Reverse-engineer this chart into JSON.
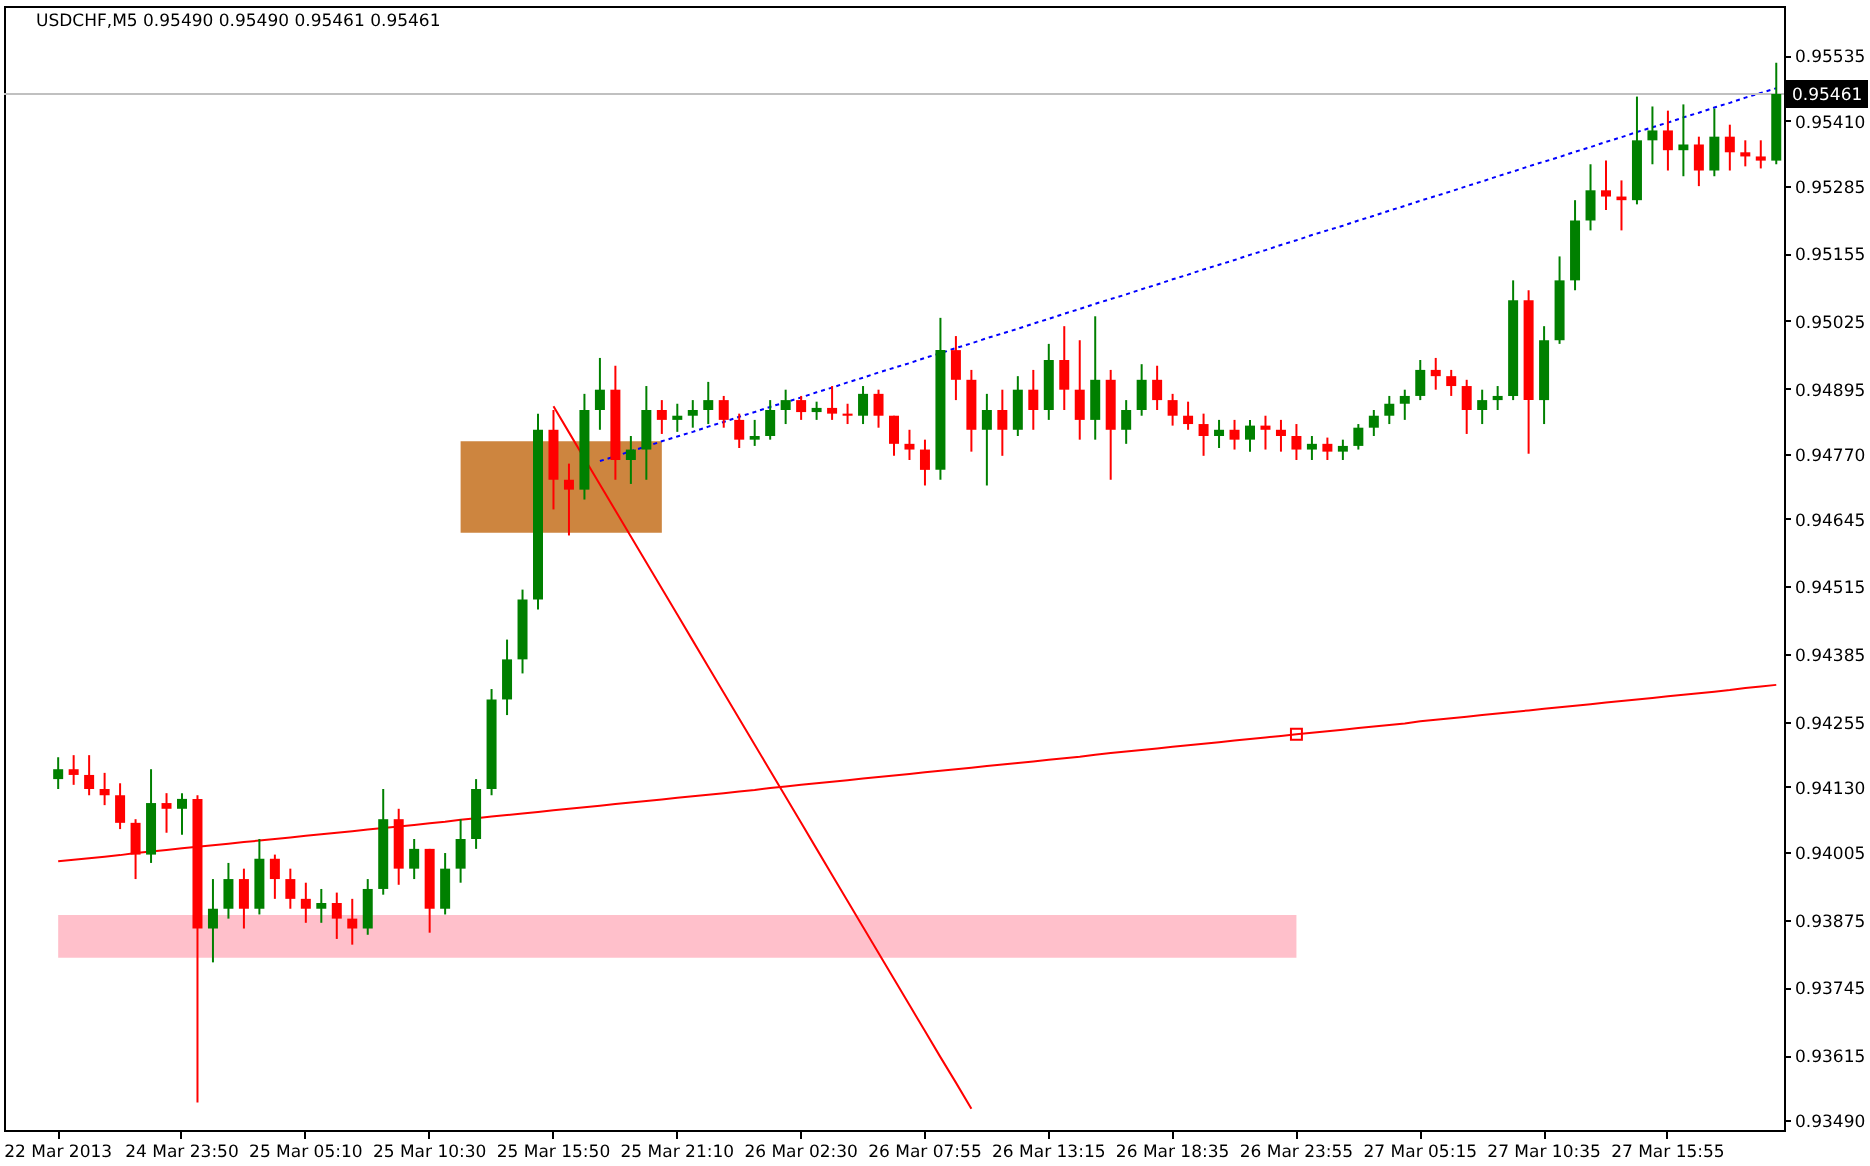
{
  "chart_data": {
    "type": "candlestick",
    "title": "USDCHF,M5 0.95490 0.95490 0.95461 0.95461",
    "categories": [
      "22 Mar 2013",
      null,
      null,
      null,
      null,
      null,
      null,
      null,
      "24 Mar 23:50",
      null,
      null,
      null,
      null,
      null,
      null,
      null,
      "25 Mar 05:10",
      null,
      null,
      null,
      null,
      null,
      null,
      null,
      "25 Mar 10:30",
      null,
      null,
      null,
      null,
      null,
      null,
      null,
      "25 Mar 15:50",
      null,
      null,
      null,
      null,
      null,
      null,
      null,
      "25 Mar 21:10",
      null,
      null,
      null,
      null,
      null,
      null,
      null,
      "26 Mar 02:30",
      null,
      null,
      null,
      null,
      null,
      null,
      null,
      "26 Mar 07:55",
      null,
      null,
      null,
      null,
      null,
      null,
      null,
      "26 Mar 13:15",
      null,
      null,
      null,
      null,
      null,
      null,
      null,
      "26 Mar 18:35",
      null,
      null,
      null,
      null,
      null,
      null,
      null,
      "26 Mar 23:55",
      null,
      null,
      null,
      null,
      null,
      null,
      null,
      "27 Mar 05:15",
      null,
      null,
      null,
      null,
      null,
      null,
      null,
      "27 Mar 10:35",
      null,
      null,
      null,
      null,
      null,
      null,
      null,
      "27 Mar 15:55",
      null,
      null,
      null,
      null,
      null,
      null,
      null
    ],
    "ohlc": [
      [
        0.94145,
        0.94187,
        0.94126,
        0.94164
      ],
      [
        0.94164,
        0.94191,
        0.94134,
        0.94153
      ],
      [
        0.94153,
        0.94191,
        0.94114,
        0.94126
      ],
      [
        0.94126,
        0.94157,
        0.94095,
        0.94114
      ],
      [
        0.94114,
        0.94137,
        0.94049,
        0.94061
      ],
      [
        0.94061,
        0.94068,
        0.93953,
        0.94
      ],
      [
        0.94,
        0.94164,
        0.93984,
        0.94099
      ],
      [
        0.94099,
        0.94118,
        0.94042,
        0.94088
      ],
      [
        0.94088,
        0.94118,
        0.94038,
        0.94107
      ],
      [
        0.94107,
        0.94114,
        0.93524,
        0.93858
      ],
      [
        0.93858,
        0.93953,
        0.93793,
        0.93896
      ],
      [
        0.93896,
        0.93984,
        0.93877,
        0.93953
      ],
      [
        0.93953,
        0.93973,
        0.93858,
        0.93896
      ],
      [
        0.93896,
        0.9403,
        0.93885,
        0.93992
      ],
      [
        0.93992,
        0.94,
        0.93915,
        0.93953
      ],
      [
        0.93953,
        0.93973,
        0.93896,
        0.93915
      ],
      [
        0.93915,
        0.93946,
        0.93869,
        0.93896
      ],
      [
        0.93896,
        0.93934,
        0.93869,
        0.93907
      ],
      [
        0.93907,
        0.93927,
        0.93838,
        0.93877
      ],
      [
        0.93877,
        0.93915,
        0.93827,
        0.93858
      ],
      [
        0.93858,
        0.93953,
        0.93846,
        0.93934
      ],
      [
        0.93934,
        0.94126,
        0.93923,
        0.94068
      ],
      [
        0.94068,
        0.94088,
        0.93942,
        0.93973
      ],
      [
        0.93973,
        0.9403,
        0.93953,
        0.94011
      ],
      [
        0.94011,
        0.94011,
        0.9385,
        0.93896
      ],
      [
        0.93896,
        0.94003,
        0.93885,
        0.93973
      ],
      [
        0.93973,
        0.94068,
        0.93946,
        0.9403
      ],
      [
        0.9403,
        0.94145,
        0.94011,
        0.94126
      ],
      [
        0.94126,
        0.94318,
        0.94114,
        0.94298
      ],
      [
        0.94298,
        0.94413,
        0.94268,
        0.94375
      ],
      [
        0.94375,
        0.94509,
        0.94348,
        0.9449
      ],
      [
        0.9449,
        0.94847,
        0.94471,
        0.94816
      ],
      [
        0.94816,
        0.94854,
        0.94663,
        0.9472
      ],
      [
        0.9472,
        0.94751,
        0.94613,
        0.94701
      ],
      [
        0.94701,
        0.94885,
        0.94682,
        0.94854
      ],
      [
        0.94854,
        0.94954,
        0.94816,
        0.94893
      ],
      [
        0.94893,
        0.94939,
        0.9472,
        0.94758
      ],
      [
        0.94758,
        0.94804,
        0.94712,
        0.94778
      ],
      [
        0.94778,
        0.949,
        0.9472,
        0.94854
      ],
      [
        0.94854,
        0.94873,
        0.94808,
        0.94835
      ],
      [
        0.94835,
        0.94866,
        0.94812,
        0.94843
      ],
      [
        0.94843,
        0.94873,
        0.9482,
        0.94854
      ],
      [
        0.94854,
        0.94908,
        0.94827,
        0.94873
      ],
      [
        0.94873,
        0.94881,
        0.9482,
        0.94835
      ],
      [
        0.94835,
        0.94847,
        0.94781,
        0.94797
      ],
      [
        0.94797,
        0.94835,
        0.94785,
        0.94804
      ],
      [
        0.94804,
        0.94873,
        0.94797,
        0.94854
      ],
      [
        0.94854,
        0.94893,
        0.94827,
        0.94873
      ],
      [
        0.94873,
        0.94881,
        0.94835,
        0.9485
      ],
      [
        0.9485,
        0.9487,
        0.94835,
        0.94858
      ],
      [
        0.94858,
        0.949,
        0.94835,
        0.94847
      ],
      [
        0.94847,
        0.94866,
        0.94827,
        0.94843
      ],
      [
        0.94843,
        0.949,
        0.94827,
        0.94885
      ],
      [
        0.94885,
        0.94893,
        0.9482,
        0.94843
      ],
      [
        0.94843,
        0.94843,
        0.94766,
        0.94789
      ],
      [
        0.94789,
        0.94816,
        0.94758,
        0.94778
      ],
      [
        0.94778,
        0.94797,
        0.94709,
        0.94739
      ],
      [
        0.94739,
        0.95031,
        0.9472,
        0.94969
      ],
      [
        0.94969,
        0.94996,
        0.94873,
        0.94912
      ],
      [
        0.94912,
        0.94931,
        0.94774,
        0.94816
      ],
      [
        0.94816,
        0.94885,
        0.94709,
        0.94854
      ],
      [
        0.94854,
        0.94893,
        0.94766,
        0.94816
      ],
      [
        0.94816,
        0.94919,
        0.94804,
        0.94893
      ],
      [
        0.94893,
        0.94931,
        0.94816,
        0.94854
      ],
      [
        0.94854,
        0.94981,
        0.94835,
        0.9495
      ],
      [
        0.9495,
        0.95015,
        0.94854,
        0.94893
      ],
      [
        0.94893,
        0.94988,
        0.94797,
        0.94835
      ],
      [
        0.94835,
        0.95034,
        0.94797,
        0.94912
      ],
      [
        0.94912,
        0.94931,
        0.9472,
        0.94816
      ],
      [
        0.94816,
        0.94873,
        0.94789,
        0.94854
      ],
      [
        0.94854,
        0.94942,
        0.94843,
        0.94912
      ],
      [
        0.94912,
        0.94939,
        0.94854,
        0.94873
      ],
      [
        0.94873,
        0.94885,
        0.94824,
        0.94843
      ],
      [
        0.94843,
        0.9487,
        0.94816,
        0.94827
      ],
      [
        0.94827,
        0.94847,
        0.94766,
        0.94804
      ],
      [
        0.94804,
        0.94835,
        0.94781,
        0.94816
      ],
      [
        0.94816,
        0.94835,
        0.94778,
        0.94797
      ],
      [
        0.94797,
        0.94835,
        0.94774,
        0.94824
      ],
      [
        0.94824,
        0.94843,
        0.94778,
        0.94816
      ],
      [
        0.94816,
        0.94835,
        0.94774,
        0.94804
      ],
      [
        0.94804,
        0.94827,
        0.94758,
        0.94778
      ],
      [
        0.94778,
        0.94804,
        0.94758,
        0.94789
      ],
      [
        0.94789,
        0.94801,
        0.94758,
        0.94774
      ],
      [
        0.94774,
        0.94797,
        0.94758,
        0.94785
      ],
      [
        0.94785,
        0.94827,
        0.94778,
        0.9482
      ],
      [
        0.9482,
        0.94854,
        0.94804,
        0.94843
      ],
      [
        0.94843,
        0.94881,
        0.94827,
        0.94866
      ],
      [
        0.94866,
        0.94893,
        0.94835,
        0.94881
      ],
      [
        0.94881,
        0.9495,
        0.94873,
        0.94931
      ],
      [
        0.94931,
        0.94954,
        0.94893,
        0.94919
      ],
      [
        0.94919,
        0.94931,
        0.94881,
        0.949
      ],
      [
        0.949,
        0.94912,
        0.94808,
        0.94854
      ],
      [
        0.94854,
        0.94893,
        0.94827,
        0.94873
      ],
      [
        0.94873,
        0.949,
        0.94854,
        0.94881
      ],
      [
        0.94881,
        0.95103,
        0.94873,
        0.95065
      ],
      [
        0.95065,
        0.95084,
        0.9477,
        0.94873
      ],
      [
        0.94873,
        0.95015,
        0.94827,
        0.94988
      ],
      [
        0.94988,
        0.95149,
        0.94981,
        0.95103
      ],
      [
        0.95103,
        0.95257,
        0.95084,
        0.95218
      ],
      [
        0.95218,
        0.95326,
        0.95199,
        0.95276
      ],
      [
        0.95276,
        0.95333,
        0.95238,
        0.95264
      ],
      [
        0.95264,
        0.95295,
        0.95199,
        0.95257
      ],
      [
        0.95257,
        0.95456,
        0.95249,
        0.95372
      ],
      [
        0.95372,
        0.95437,
        0.95326,
        0.95391
      ],
      [
        0.95391,
        0.95429,
        0.95314,
        0.95353
      ],
      [
        0.95353,
        0.95441,
        0.95303,
        0.95364
      ],
      [
        0.95364,
        0.95379,
        0.95284,
        0.95314
      ],
      [
        0.95314,
        0.95433,
        0.95303,
        0.95379
      ],
      [
        0.95379,
        0.95402,
        0.95314,
        0.95349
      ],
      [
        0.95349,
        0.95372,
        0.95322,
        0.95341
      ],
      [
        0.95341,
        0.95372,
        0.95318,
        0.95333
      ],
      [
        0.95333,
        0.95521,
        0.95326,
        0.95461
      ]
    ],
    "colors": [
      "#008000",
      "#ff0000",
      "#ff0000",
      "#ff0000",
      "#ff0000",
      "#ff0000",
      "#008000",
      "#ff0000",
      "#008000",
      "#ff0000",
      "#008000",
      "#008000",
      "#ff0000",
      "#008000",
      "#ff0000",
      "#ff0000",
      "#ff0000",
      "#008000",
      "#ff0000",
      "#ff0000",
      "#008000",
      "#008000",
      "#ff0000",
      "#008000",
      "#ff0000",
      "#008000",
      "#008000",
      "#008000",
      "#008000",
      "#008000",
      "#008000",
      "#008000",
      "#ff0000",
      "#ff0000",
      "#008000",
      "#008000",
      "#ff0000",
      "#008000",
      "#008000",
      "#ff0000",
      "#008000",
      "#008000",
      "#008000",
      "#ff0000",
      "#ff0000",
      "#008000",
      "#008000",
      "#008000",
      "#ff0000",
      "#008000",
      "#ff0000",
      "#ff0000",
      "#008000",
      "#ff0000",
      "#ff0000",
      "#ff0000",
      "#ff0000",
      "#008000",
      "#ff0000",
      "#ff0000",
      "#008000",
      "#ff0000",
      "#008000",
      "#ff0000",
      "#008000",
      "#ff0000",
      "#ff0000",
      "#008000",
      "#ff0000",
      "#008000",
      "#008000",
      "#ff0000",
      "#ff0000",
      "#ff0000",
      "#ff0000",
      "#008000",
      "#ff0000",
      "#008000",
      "#ff0000",
      "#ff0000",
      "#ff0000",
      "#008000",
      "#ff0000",
      "#008000",
      "#008000",
      "#008000",
      "#008000",
      "#008000",
      "#008000",
      "#ff0000",
      "#ff0000",
      "#ff0000",
      "#008000",
      "#008000",
      "#008000",
      "#ff0000",
      "#008000",
      "#008000",
      "#008000",
      "#008000",
      "#ff0000",
      "#ff0000",
      "#008000",
      "#008000",
      "#ff0000",
      "#008000",
      "#ff0000",
      "#008000",
      "#ff0000",
      "#ff0000",
      "#ff0000",
      "#008000"
    ],
    "ylim": [
      0.93471,
      0.9563
    ],
    "yticks": [
      0.95535,
      {
        "value": 0.9541,
        "label": "0.95410"
      },
      0.95285,
      0.95155,
      0.95025,
      0.94895,
      {
        "value": 0.9477,
        "label": "0.94770"
      },
      0.94645,
      0.94515,
      0.94385,
      0.94255,
      {
        "value": 0.9413,
        "label": "0.94130"
      },
      0.94005,
      0.93875,
      0.93745,
      0.93615,
      {
        "value": 0.9349,
        "label": "0.93490"
      }
    ],
    "series": [
      {
        "type": "line",
        "color": "#cd853f",
        "values": [
          null,
          null,
          null,
          null,
          null,
          null,
          null,
          null,
          null,
          null,
          null,
          null,
          null,
          null,
          null,
          null,
          null,
          null,
          null,
          null,
          null,
          null,
          null,
          null,
          null,
          null,
          null,
          null,
          null,
          null,
          null,
          null,
          null,
          null,
          null,
          null,
          null,
          null,
          null,
          null,
          null,
          null,
          null,
          null,
          null,
          null,
          null,
          null,
          null,
          null,
          null,
          null,
          null,
          null,
          null,
          null,
          null,
          null,
          null,
          null,
          null,
          null,
          null,
          null,
          null,
          null,
          null,
          null,
          null,
          null,
          null,
          null,
          null,
          null,
          null,
          null,
          null,
          null,
          null,
          null,
          null,
          null,
          null,
          null,
          null,
          null,
          null,
          null,
          null,
          null,
          null,
          null,
          null,
          null,
          null,
          null,
          null,
          null,
          null,
          null,
          null,
          null,
          null,
          null,
          null,
          null,
          null,
          null,
          null,
          null,
          null,
          null
        ],
        "lower": [
          null,
          null,
          null,
          null,
          null,
          null,
          null,
          null,
          null,
          null,
          null,
          null,
          null,
          null,
          null,
          null,
          null,
          null,
          null,
          null,
          null,
          null,
          null,
          null,
          null,
          null,
          0.94618,
          0.94618,
          0.94618,
          0.94618,
          0.94618,
          0.94618,
          0.94618,
          0.94618,
          0.94618,
          0.94618,
          0.94618,
          0.94618,
          0.94618,
          0.94618,
          null,
          null,
          null,
          null,
          null,
          null,
          null,
          null,
          null,
          null,
          null,
          null,
          null,
          null,
          null,
          null,
          null,
          null,
          null,
          null,
          null,
          null,
          null,
          null,
          null,
          null,
          null,
          null,
          null,
          null,
          null,
          null,
          null,
          null,
          null,
          null,
          null,
          null,
          null,
          null,
          null,
          null,
          null,
          null,
          null,
          null,
          null,
          null,
          null,
          null,
          null,
          null,
          null,
          null,
          null,
          null,
          null,
          null,
          null,
          null,
          null,
          null,
          null,
          null,
          null,
          null,
          null,
          null,
          null,
          null,
          null,
          null
        ],
        "upper": [
          null,
          null,
          null,
          null,
          null,
          null,
          null,
          null,
          null,
          null,
          null,
          null,
          null,
          null,
          null,
          null,
          null,
          null,
          null,
          null,
          null,
          null,
          null,
          null,
          null,
          null,
          0.94794,
          0.94794,
          0.94794,
          0.94794,
          0.94794,
          0.94794,
          0.94794,
          0.94794,
          0.94794,
          0.94794,
          0.94794,
          0.94794,
          0.94794,
          0.94794,
          null,
          null,
          null,
          null,
          null,
          null,
          null,
          null,
          null,
          null,
          null,
          null,
          null,
          null,
          null,
          null,
          null,
          null,
          null,
          null,
          null,
          null,
          null,
          null,
          null,
          null,
          null,
          null,
          null,
          null,
          null,
          null,
          null,
          null,
          null,
          null,
          null,
          null,
          null,
          null,
          null,
          null,
          null,
          null,
          null,
          null,
          null,
          null,
          null,
          null,
          null,
          null,
          null,
          null,
          null,
          null,
          null,
          null,
          null,
          null,
          null,
          null,
          null,
          null,
          null,
          null,
          null,
          null,
          null,
          null,
          null,
          null
        ]
      },
      {
        "type": "line",
        "color": "#ffc0cb",
        "values": [
          null,
          null,
          null,
          null,
          null,
          null,
          null,
          null,
          null,
          null,
          null,
          null,
          null,
          null,
          null,
          null,
          null,
          null,
          null,
          null,
          null,
          null,
          null,
          null,
          null,
          null,
          null,
          null,
          null,
          null,
          null,
          null,
          null,
          null,
          null,
          null,
          null,
          null,
          null,
          null,
          null,
          null,
          null,
          null,
          null,
          null,
          null,
          null,
          null,
          null,
          null,
          null,
          null,
          null,
          null,
          null,
          null,
          null,
          null,
          null,
          null,
          null,
          null,
          null,
          null,
          null,
          null,
          null,
          null,
          null,
          null,
          null,
          null,
          null,
          null,
          null,
          null,
          null,
          null,
          null,
          null,
          null,
          null,
          null,
          null,
          null,
          null,
          null,
          null,
          null,
          null,
          null,
          null,
          null,
          null,
          null,
          null,
          null,
          null,
          null,
          null,
          null,
          null,
          null,
          null,
          null,
          null,
          null,
          null,
          null,
          null,
          null
        ],
        "lower": [
          0.93802,
          0.93802,
          0.93802,
          0.93802,
          0.93802,
          0.93802,
          0.93802,
          0.93802,
          0.93802,
          0.93802,
          0.93802,
          0.93802,
          0.93802,
          0.93802,
          0.93802,
          0.93802,
          0.93802,
          0.93802,
          0.93802,
          0.93802,
          0.93802,
          0.93802,
          0.93802,
          0.93802,
          0.93802,
          0.93802,
          0.93802,
          0.93802,
          0.93802,
          0.93802,
          0.93802,
          0.93802,
          0.93802,
          0.93802,
          0.93802,
          0.93802,
          0.93802,
          0.93802,
          0.93802,
          0.93802,
          0.93802,
          0.93802,
          0.93802,
          0.93802,
          0.93802,
          0.93802,
          0.93802,
          0.93802,
          0.93802,
          0.93802,
          0.93802,
          0.93802,
          0.93802,
          0.93802,
          0.93802,
          0.93802,
          0.93802,
          0.93802,
          0.93802,
          0.93802,
          0.93802,
          0.93802,
          0.93802,
          0.93802,
          0.93802,
          0.93802,
          0.93802,
          0.93802,
          0.93802,
          0.93802,
          0.93802,
          0.93802,
          0.93802,
          0.93802,
          0.93802,
          0.93802,
          0.93802,
          0.93802,
          0.93802,
          0.93802,
          0.93802,
          null,
          null,
          null,
          null,
          null,
          null,
          null,
          null,
          null,
          null,
          null,
          null,
          null,
          null,
          null,
          null,
          null,
          null,
          null,
          null,
          null,
          null,
          null,
          null,
          null,
          null,
          null,
          null,
          null,
          null,
          null
        ],
        "upper": [
          0.93884,
          0.93884,
          0.93884,
          0.93884,
          0.93884,
          0.93884,
          0.93884,
          0.93884,
          0.93884,
          0.93884,
          0.93884,
          0.93884,
          0.93884,
          0.93884,
          0.93884,
          0.93884,
          0.93884,
          0.93884,
          0.93884,
          0.93884,
          0.93884,
          0.93884,
          0.93884,
          0.93884,
          0.93884,
          0.93884,
          0.93884,
          0.93884,
          0.93884,
          0.93884,
          0.93884,
          0.93884,
          0.93884,
          0.93884,
          0.93884,
          0.93884,
          0.93884,
          0.93884,
          0.93884,
          0.93884,
          0.93884,
          0.93884,
          0.93884,
          0.93884,
          0.93884,
          0.93884,
          0.93884,
          0.93884,
          0.93884,
          0.93884,
          0.93884,
          0.93884,
          0.93884,
          0.93884,
          0.93884,
          0.93884,
          0.93884,
          0.93884,
          0.93884,
          0.93884,
          0.93884,
          0.93884,
          0.93884,
          0.93884,
          0.93884,
          0.93884,
          0.93884,
          0.93884,
          0.93884,
          0.93884,
          0.93884,
          0.93884,
          0.93884,
          0.93884,
          0.93884,
          0.93884,
          0.93884,
          0.93884,
          0.93884,
          0.93884,
          0.93884,
          null,
          null,
          null,
          null,
          null,
          null,
          null,
          null,
          null,
          null,
          null,
          null,
          null,
          null,
          null,
          null,
          null,
          null,
          null,
          null,
          null,
          null,
          null,
          null,
          null,
          null,
          null,
          null,
          null,
          null,
          null
        ]
      },
      {
        "type": "line",
        "color": "#ff0000",
        "values": [
          0.93987,
          0.9399,
          0.93993,
          0.93996,
          0.93999,
          0.94003,
          0.94006,
          0.94009,
          0.94012,
          0.94015,
          0.94018,
          0.94021,
          0.94024,
          0.94027,
          0.9403,
          0.94033,
          0.94036,
          0.94039,
          0.94042,
          0.94045,
          0.94048,
          0.94051,
          0.94054,
          0.94057,
          0.9406,
          0.94063,
          0.94067,
          0.9407,
          0.94073,
          0.94076,
          0.94079,
          0.94082,
          0.94085,
          0.94088,
          0.94091,
          0.94094,
          0.94097,
          0.941,
          0.94103,
          0.94106,
          0.94109,
          0.94112,
          0.94115,
          0.94118,
          0.94121,
          0.94124,
          0.94128,
          0.94131,
          0.94134,
          0.94137,
          0.9414,
          0.94143,
          0.94146,
          0.94149,
          0.94152,
          0.94155,
          0.94158,
          0.94161,
          0.94164,
          0.94167,
          0.9417,
          0.94173,
          0.94176,
          0.94179,
          0.94182,
          0.94185,
          0.94188,
          0.94192,
          0.94195,
          0.94198,
          0.94201,
          0.94204,
          0.94207,
          0.9421,
          0.94213,
          0.94216,
          0.94219,
          0.94222,
          0.94225,
          0.94228,
          0.94231,
          0.94234,
          0.94237,
          0.9424,
          0.94243,
          0.94246,
          0.94249,
          0.94252,
          0.94256,
          0.94259,
          0.94262,
          0.94265,
          0.94268,
          0.94271,
          0.94274,
          0.94277,
          0.9428,
          0.94283,
          0.94286,
          0.94289,
          0.94292,
          0.94295,
          0.94298,
          0.94301,
          0.94304,
          0.94307,
          0.9431,
          0.94313,
          0.94316,
          0.9432,
          0.94323,
          0.94326
        ]
      },
      {
        "type": "scatter",
        "color": "#ff0000",
        "marker": "square",
        "values": [
          null,
          null,
          null,
          null,
          null,
          null,
          null,
          null,
          null,
          null,
          null,
          null,
          null,
          null,
          null,
          null,
          null,
          null,
          null,
          null,
          null,
          null,
          null,
          null,
          null,
          null,
          null,
          null,
          null,
          null,
          null,
          null,
          null,
          null,
          null,
          null,
          null,
          null,
          null,
          null,
          null,
          null,
          null,
          null,
          null,
          null,
          null,
          null,
          null,
          null,
          null,
          null,
          null,
          null,
          null,
          null,
          null,
          null,
          null,
          null,
          null,
          null,
          null,
          null,
          null,
          null,
          null,
          null,
          null,
          null,
          null,
          null,
          null,
          null,
          null,
          null,
          null,
          null,
          null,
          null,
          0.94231,
          null,
          null,
          null,
          null,
          null,
          null,
          null,
          null,
          null,
          null,
          null,
          null,
          null,
          null,
          null,
          null,
          null,
          null,
          null,
          null,
          null,
          null,
          null,
          null,
          null,
          null,
          null,
          null,
          null,
          null,
          null
        ]
      },
      {
        "type": "line",
        "color": "#ff0000",
        "values": [
          null,
          null,
          null,
          null,
          null,
          null,
          null,
          null,
          null,
          null,
          null,
          null,
          null,
          null,
          null,
          null,
          null,
          null,
          null,
          null,
          null,
          null,
          null,
          null,
          null,
          null,
          null,
          null,
          null,
          null,
          null,
          null,
          0.94861,
          0.94811,
          0.94761,
          0.94711,
          0.94661,
          0.94611,
          0.94561,
          0.94511,
          0.94461,
          0.94411,
          0.94361,
          0.94311,
          0.94261,
          0.94211,
          0.94161,
          0.94111,
          0.94061,
          0.94011,
          0.93961,
          0.93911,
          0.93861,
          0.93811,
          0.93761,
          0.93711,
          0.93661,
          0.93611,
          0.93562,
          0.93512,
          null,
          null,
          null,
          null,
          null,
          null,
          null,
          null,
          null,
          null,
          null,
          null,
          null,
          null,
          null,
          null,
          null,
          null,
          null,
          null,
          null,
          null,
          null,
          null,
          null,
          null,
          null,
          null,
          null,
          null,
          null,
          null,
          null,
          null,
          null,
          null,
          null,
          null,
          null,
          null,
          null,
          null,
          null,
          null,
          null,
          null,
          null,
          null,
          null,
          null,
          null,
          null
        ]
      },
      {
        "type": "line",
        "color": "#0000ff",
        "line_style": "dotted",
        "values": [
          null,
          null,
          null,
          null,
          null,
          null,
          null,
          null,
          null,
          null,
          null,
          null,
          null,
          null,
          null,
          null,
          null,
          null,
          null,
          null,
          null,
          null,
          null,
          null,
          null,
          null,
          null,
          null,
          null,
          null,
          null,
          null,
          null,
          null,
          null,
          0.94756,
          0.94765,
          0.94775,
          0.94784,
          0.94794,
          0.94803,
          0.94812,
          0.94822,
          0.94831,
          0.94841,
          0.9485,
          0.9486,
          0.94869,
          0.94878,
          0.94888,
          0.94897,
          0.94907,
          0.94916,
          0.94926,
          0.94935,
          0.94944,
          0.94954,
          0.94963,
          0.94973,
          0.94982,
          0.94992,
          0.95001,
          0.9501,
          0.9502,
          0.95029,
          0.95039,
          0.95048,
          0.95058,
          0.95067,
          0.95076,
          0.95086,
          0.95095,
          0.95105,
          0.95114,
          0.95124,
          0.95133,
          0.95142,
          0.95152,
          0.95161,
          0.95171,
          0.9518,
          0.9519,
          0.95199,
          0.95208,
          0.95218,
          0.95227,
          0.95237,
          0.95246,
          0.95256,
          0.95265,
          0.95274,
          0.95284,
          0.95293,
          0.95303,
          0.95312,
          0.95322,
          0.95331,
          0.9534,
          0.9535,
          0.95359,
          0.95369,
          0.95378,
          0.95388,
          0.95397,
          0.95406,
          0.95416,
          0.95425,
          0.95435,
          0.95444,
          0.95454,
          0.95463,
          0.95472
        ]
      }
    ],
    "ref_lines": [
      {
        "axis": "y",
        "value": 0.95461,
        "label": "0.95461",
        "color": "#c0c0c0"
      }
    ],
    "grid": false
  }
}
